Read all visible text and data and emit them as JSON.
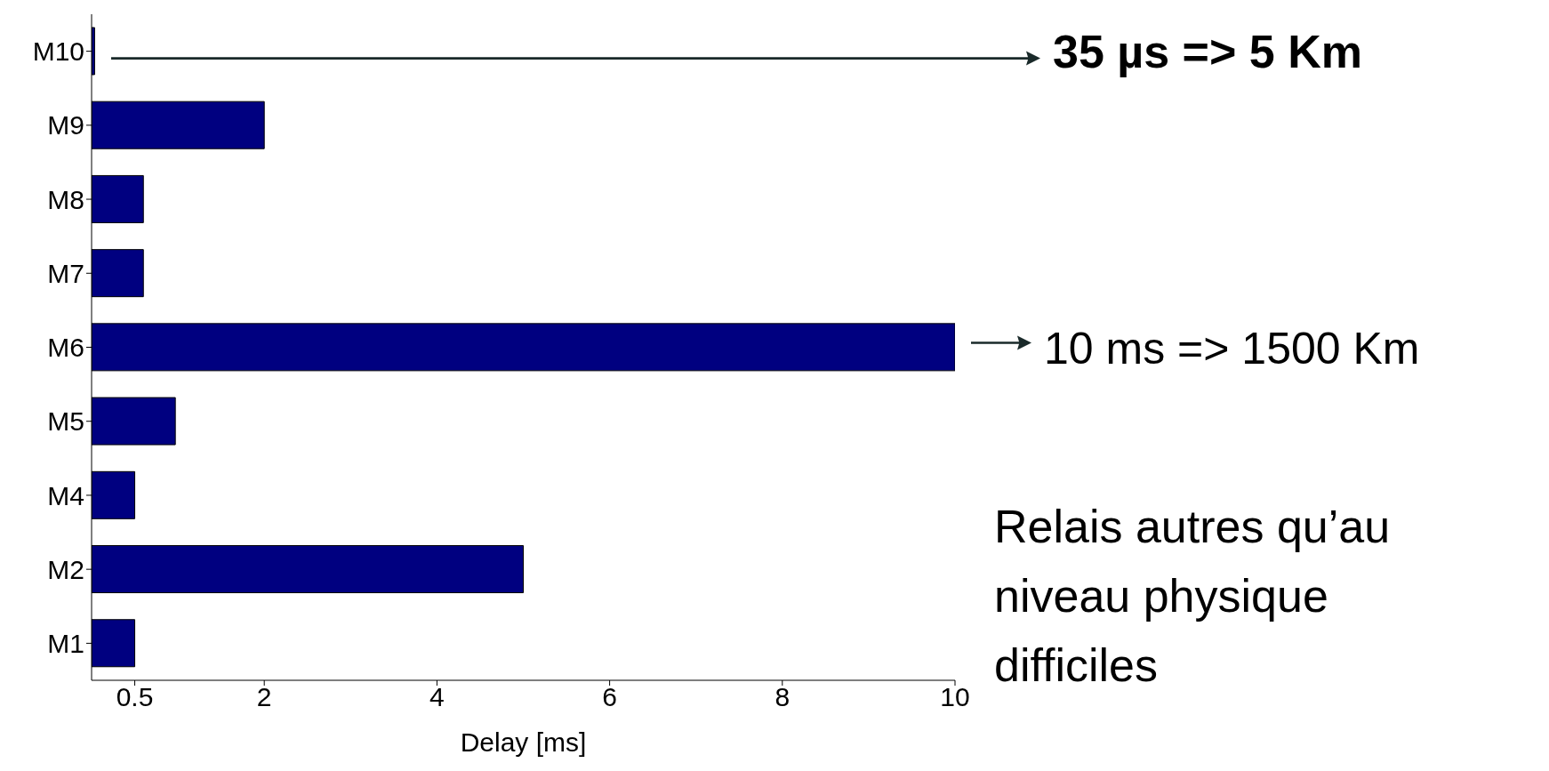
{
  "chart_data": {
    "type": "bar",
    "orientation": "horizontal",
    "xlabel": "Delay [ms]",
    "categories": [
      "M10",
      "M9",
      "M8",
      "M7",
      "M6",
      "M5",
      "M4",
      "M2",
      "M1"
    ],
    "values": [
      0.035,
      2,
      0.6,
      0.6,
      10,
      0.97,
      0.5,
      5,
      0.5
    ],
    "color": "#000080",
    "xlim": [
      0,
      10
    ],
    "xticks": [
      0.5,
      2,
      4,
      6,
      8,
      10
    ],
    "grid": false,
    "annotations": [
      "35 µs => 5 Km",
      "10 ms => 1500 Km",
      "Relais autres qu’au niveau physique difficiles"
    ]
  }
}
